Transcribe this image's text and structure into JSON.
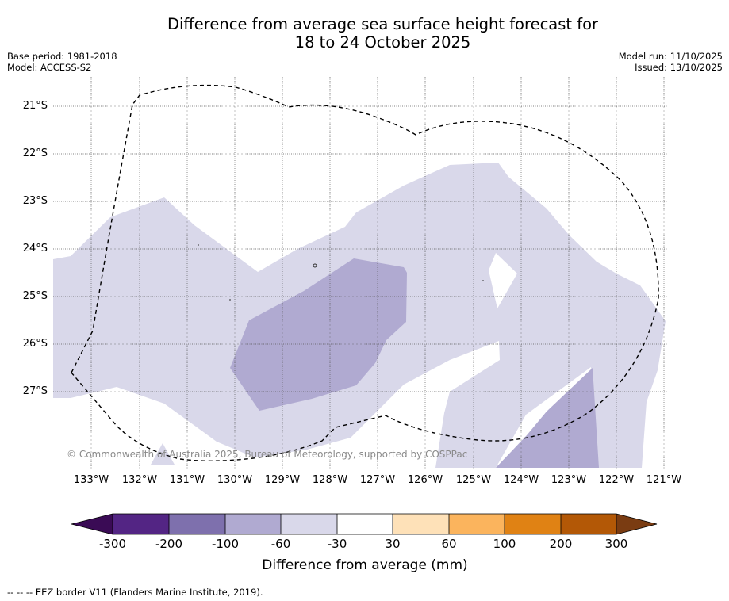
{
  "title_line1": "Difference from average sea surface height forecast for",
  "title_line2": "18 to 24 October 2025",
  "base_period": "Base period: 1981-2018",
  "model": "Model: ACCESS-S2",
  "model_run": "Model run: 11/10/2025",
  "issued": "Issued: 13/10/2025",
  "latitude_labels": [
    "21°S",
    "22°S",
    "23°S",
    "24°S",
    "25°S",
    "26°S",
    "27°S"
  ],
  "longitude_labels": [
    "133°W",
    "132°W",
    "131°W",
    "130°W",
    "129°W",
    "128°W",
    "127°W",
    "126°W",
    "125°W",
    "124°W",
    "123°W",
    "122°W",
    "121°W"
  ],
  "copyright": "© Commonwealth of Australia 2025, Bureau of Meteorology, supported by COSPPac",
  "colorbar": {
    "title": "Difference from average (mm)",
    "tick_labels": [
      "-300",
      "-200",
      "-100",
      "-60",
      "-30",
      "30",
      "60",
      "100",
      "200",
      "300"
    ],
    "under_color": "#3a0b55",
    "over_color": "#7a3c12",
    "colors": [
      "#532584",
      "#7e70ad",
      "#b0aad1",
      "#d9d8ea",
      "#ffffff",
      "#fee1b8",
      "#fbb45d",
      "#e08214",
      "#b35806"
    ]
  },
  "contour_colors": {
    "band_minus60_to_minus30": "#d9d8ea",
    "band_minus100_to_minus60": "#b0aad1"
  },
  "footnote": "--  --  -- EEZ border V11 (Flanders Marine Institute, 2019)."
}
